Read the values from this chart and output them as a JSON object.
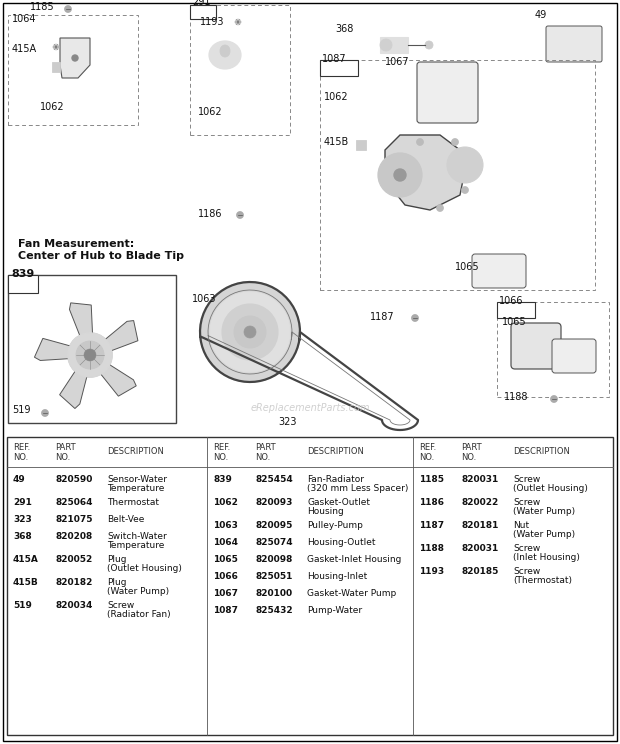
{
  "bg_color": "#ffffff",
  "watermark": "eReplacementParts.com",
  "table": {
    "col1_rows": [
      [
        "49",
        "820590",
        "Sensor-Water",
        "Temperature"
      ],
      [
        "291",
        "825064",
        "Thermostat",
        ""
      ],
      [
        "323",
        "821075",
        "Belt-Vee",
        ""
      ],
      [
        "368",
        "820208",
        "Switch-Water",
        "Temperature"
      ],
      [
        "415A",
        "820052",
        "Plug",
        "(Outlet Housing)"
      ],
      [
        "415B",
        "820182",
        "Plug",
        "(Water Pump)"
      ],
      [
        "519",
        "820034",
        "Screw",
        "(Radiator Fan)"
      ]
    ],
    "col2_rows": [
      [
        "839",
        "825454",
        "Fan-Radiator",
        "(320 mm Less Spacer)"
      ],
      [
        "1062",
        "820093",
        "Gasket-Outlet",
        "Housing"
      ],
      [
        "1063",
        "820095",
        "Pulley-Pump",
        ""
      ],
      [
        "1064",
        "825074",
        "Housing-Outlet",
        ""
      ],
      [
        "1065",
        "820098",
        "Gasket-Inlet Housing",
        ""
      ],
      [
        "1066",
        "825051",
        "Housing-Inlet",
        ""
      ],
      [
        "1067",
        "820100",
        "Gasket-Water Pump",
        ""
      ],
      [
        "1087",
        "825432",
        "Pump-Water",
        ""
      ]
    ],
    "col3_rows": [
      [
        "1185",
        "820031",
        "Screw",
        "(Outlet Housing)"
      ],
      [
        "1186",
        "820022",
        "Screw",
        "(Water Pump)"
      ],
      [
        "1187",
        "820181",
        "Nut",
        "(Water Pump)"
      ],
      [
        "1188",
        "820031",
        "Screw",
        "(Inlet Housing)"
      ],
      [
        "1193",
        "820185",
        "Screw",
        "(Thermostat)"
      ]
    ]
  }
}
